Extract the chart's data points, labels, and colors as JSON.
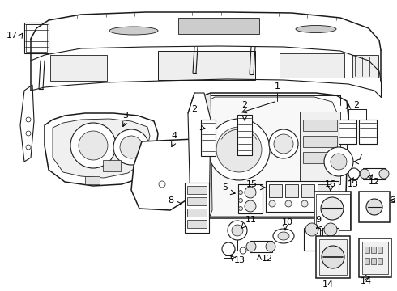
{
  "bg_color": "#ffffff",
  "lc": "#1a1a1a",
  "fig_w": 4.9,
  "fig_h": 3.6,
  "dpi": 100
}
